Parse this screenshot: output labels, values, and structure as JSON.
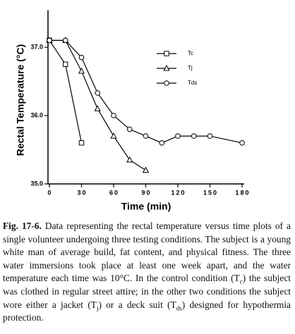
{
  "chart_data": {
    "type": "line",
    "y_label": "Rectal Temperature (°C)",
    "x_label": "Time (min)",
    "xlim": [
      0,
      180
    ],
    "xticks": [
      0,
      30,
      60,
      90,
      120,
      150,
      180
    ],
    "ylim": [
      35,
      37.5
    ],
    "yticks": [
      {
        "value": 35,
        "label": "35.0"
      },
      {
        "value": 36,
        "label": "36.0"
      },
      {
        "value": 37,
        "label": "37.0"
      }
    ],
    "legend": "upper right",
    "series": [
      {
        "name": "Tc",
        "color": "#000000",
        "marker": "square",
        "x": [
          0,
          15,
          30
        ],
        "values": [
          37.1,
          36.75,
          35.6
        ]
      },
      {
        "name": "Tj",
        "color": "#000000",
        "marker": "triangle",
        "x": [
          0,
          15,
          30,
          45,
          60,
          75,
          90
        ],
        "values": [
          37.1,
          37.1,
          36.65,
          36.1,
          35.7,
          35.35,
          35.2
        ]
      },
      {
        "name": "Tds",
        "color": "#000000",
        "marker": "circle",
        "x": [
          0,
          15,
          30,
          45,
          60,
          75,
          90,
          105,
          120,
          135,
          150,
          180
        ],
        "values": [
          37.1,
          37.1,
          36.85,
          36.33,
          36.0,
          35.8,
          35.7,
          35.6,
          35.7,
          35.7,
          35.7,
          35.6
        ]
      }
    ]
  },
  "caption": {
    "label": "Fig. 17-6.",
    "parts": [
      {
        "text": " Data representing the rectal temperature versus time plots of a single volunteer undergoing three testing conditions. The subject is a young white man of average build, fat content, and physical fitness. The three water immersions took place at least one week apart, and the water temperature each time was 10°C. In the control condition (T"
      },
      {
        "sub": "c"
      },
      {
        "text": ") the subject was clothed in regular street attire; in the other two conditions the subject wore either a jacket (T"
      },
      {
        "sub": "j"
      },
      {
        "text": ") or a deck suit (T"
      },
      {
        "sub": "ds"
      },
      {
        "text": ") designed for hypothermia protection."
      }
    ]
  }
}
